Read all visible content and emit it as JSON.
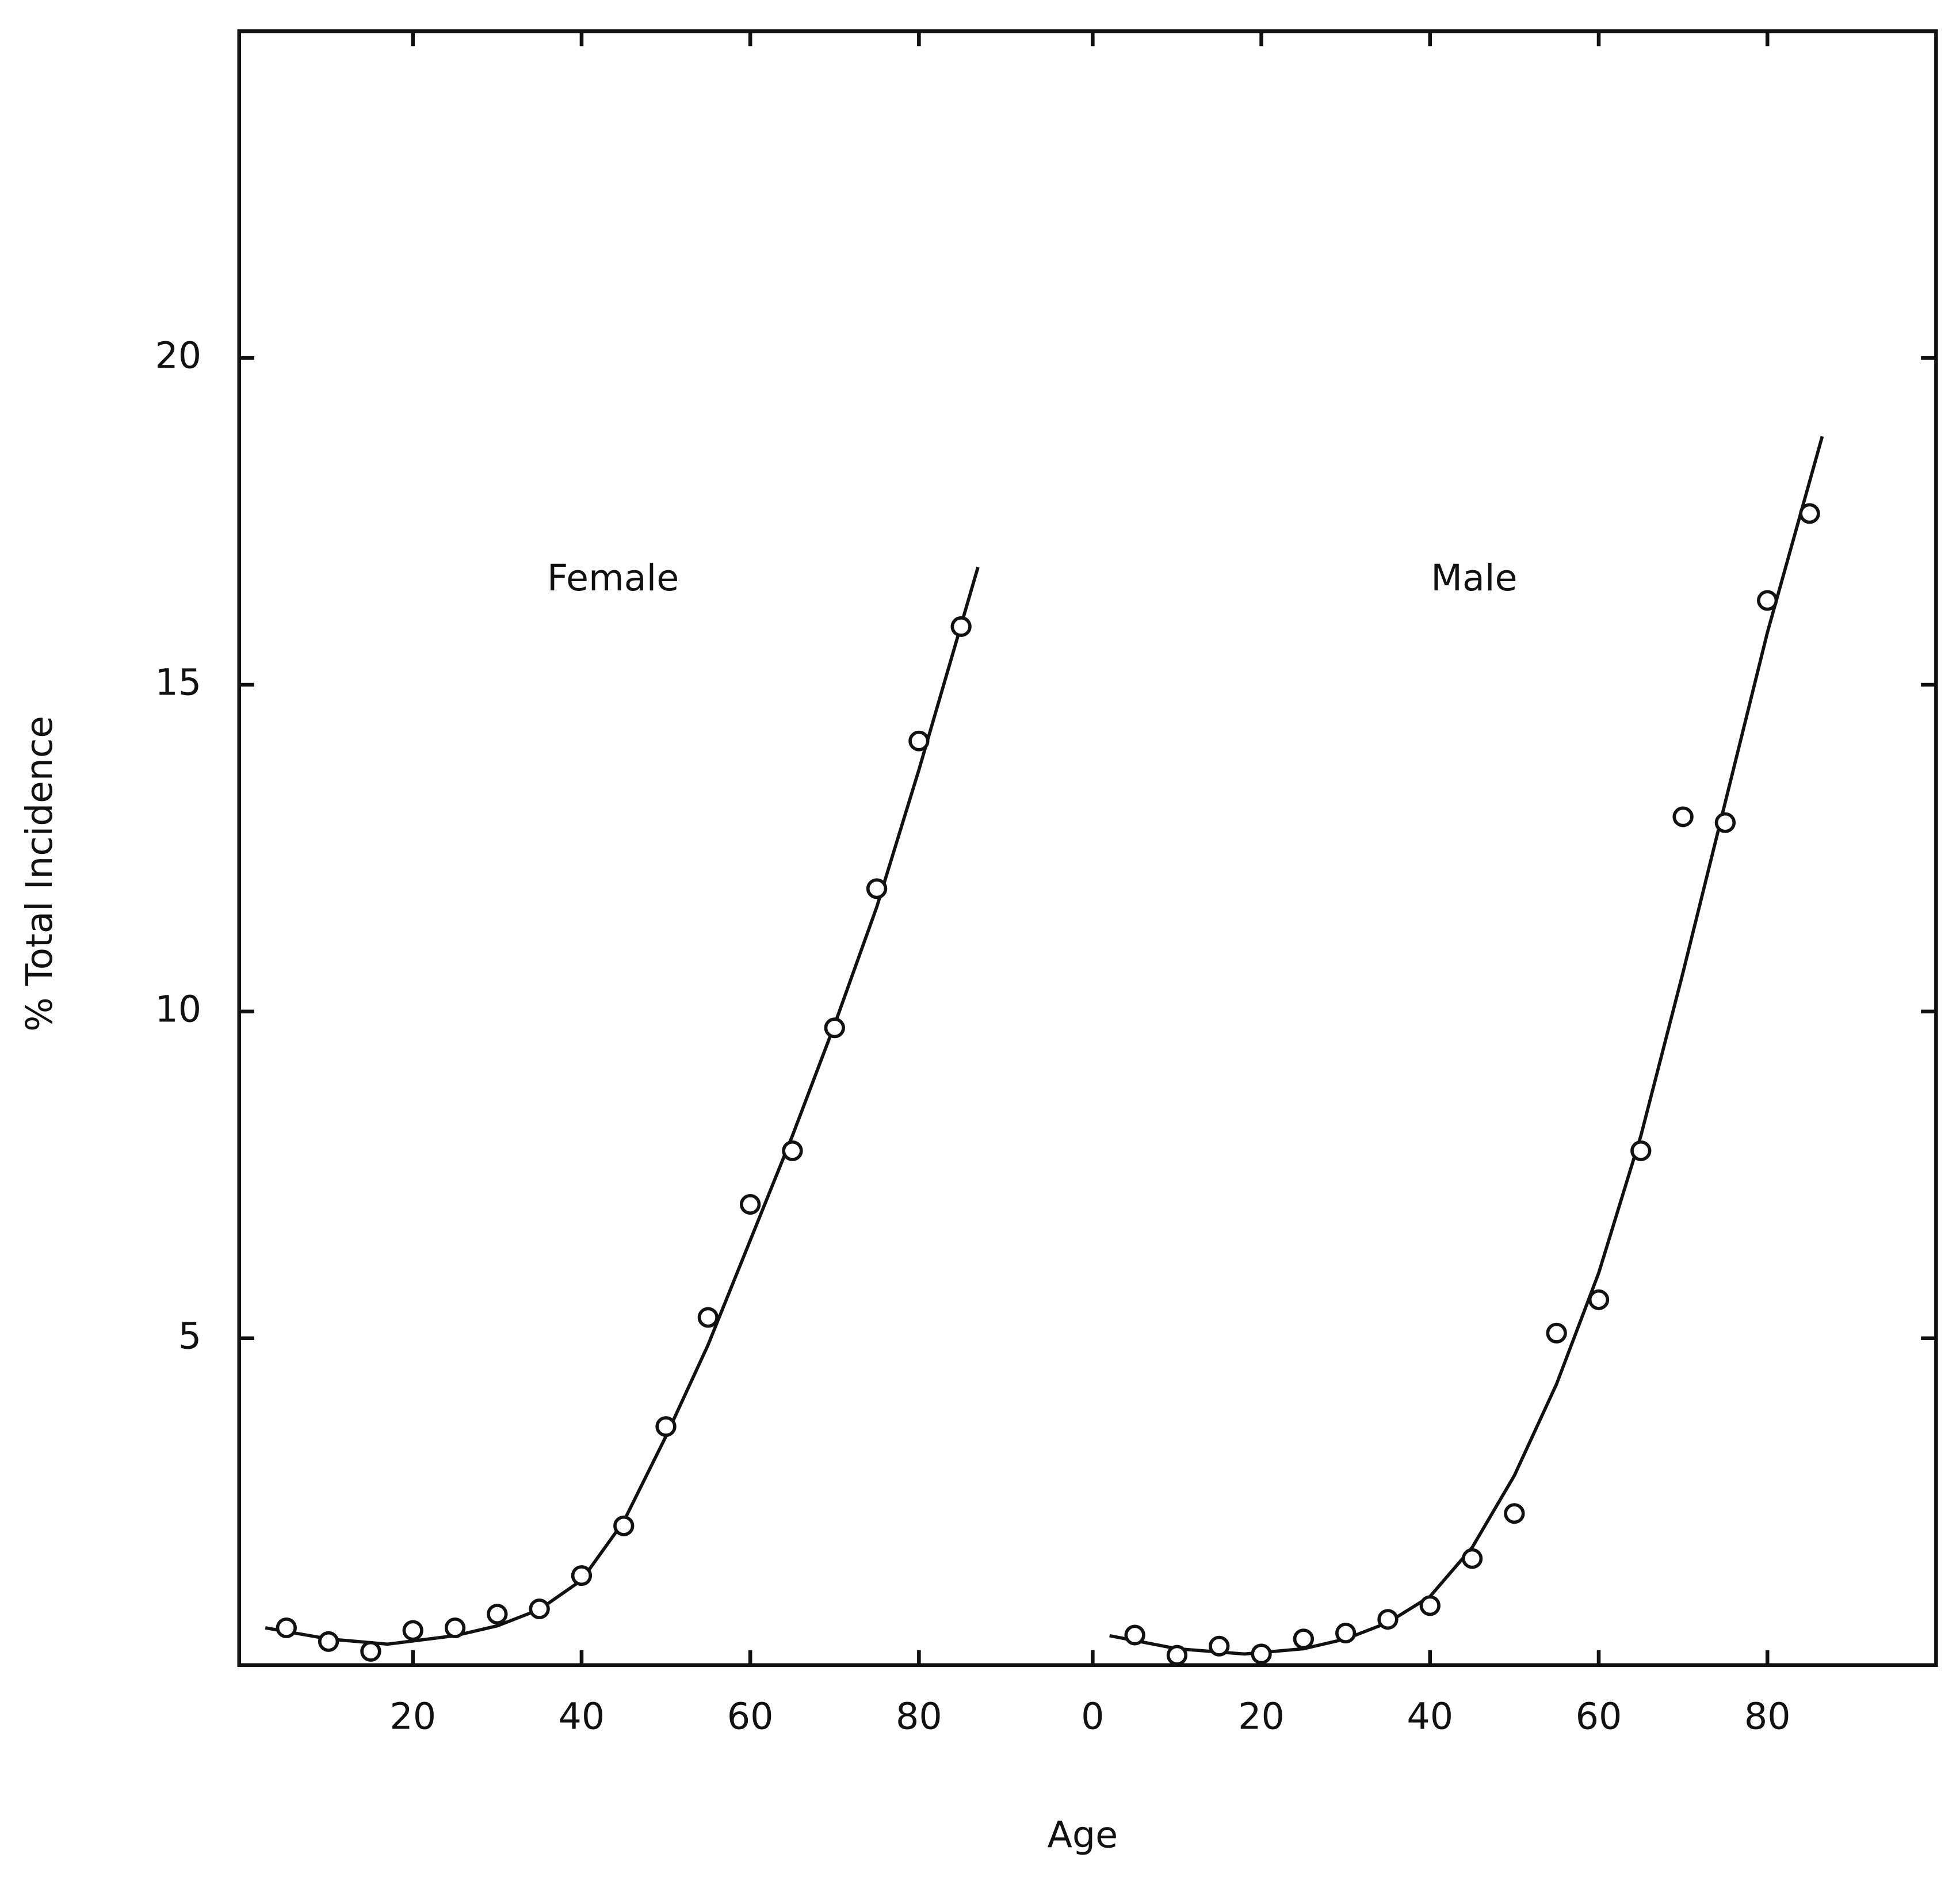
{
  "chart_data": [
    {
      "type": "scatter",
      "annotation": "Female",
      "ylabel": "% Total Incidence",
      "xlabel": "Age",
      "xlim": [
        0,
        100
      ],
      "xticks": [
        20,
        40,
        60,
        80
      ],
      "ylim": [
        0,
        25
      ],
      "yticks": [
        5,
        10,
        15,
        20
      ],
      "x": [
        5,
        10,
        15,
        20,
        25,
        30,
        35,
        40,
        45,
        50,
        55,
        60,
        65,
        70,
        75,
        80,
        85
      ],
      "values": [
        0.57,
        0.36,
        0.21,
        0.53,
        0.57,
        0.78,
        0.86,
        1.37,
        2.13,
        3.65,
        5.32,
        7.05,
        7.87,
        9.75,
        11.88,
        14.14,
        15.89
      ],
      "fit_x": [
        2.5,
        10,
        17,
        25,
        30,
        35,
        40,
        45,
        50,
        55,
        60,
        65,
        70,
        75,
        80,
        87
      ],
      "fit_values": [
        0.57,
        0.4,
        0.32,
        0.45,
        0.6,
        0.85,
        1.3,
        2.2,
        3.5,
        4.9,
        6.5,
        8.1,
        9.8,
        11.6,
        13.7,
        16.8
      ],
      "color": "#111111"
    },
    {
      "type": "scatter",
      "annotation": "Male",
      "xlim": [
        0,
        100
      ],
      "xticks": [
        0,
        20,
        40,
        60,
        80
      ],
      "ylim": [
        0,
        25
      ],
      "yticks": [
        5,
        10,
        15,
        20
      ],
      "x": [
        5,
        10,
        15,
        20,
        25,
        30,
        35,
        40,
        45,
        50,
        55,
        60,
        65,
        70,
        75,
        80,
        85
      ],
      "values": [
        0.46,
        0.15,
        0.29,
        0.17,
        0.4,
        0.49,
        0.7,
        0.91,
        1.63,
        2.32,
        5.08,
        5.59,
        7.87,
        12.98,
        12.89,
        16.29,
        17.62
      ],
      "fit_x": [
        2,
        10,
        18,
        25,
        30,
        35,
        40,
        45,
        50,
        55,
        60,
        65,
        70,
        75,
        80,
        86.5
      ],
      "fit_values": [
        0.45,
        0.25,
        0.17,
        0.25,
        0.4,
        0.65,
        1.05,
        1.8,
        2.9,
        4.3,
        6.0,
        8.1,
        10.6,
        13.2,
        15.8,
        18.8
      ],
      "color": "#111111"
    }
  ]
}
